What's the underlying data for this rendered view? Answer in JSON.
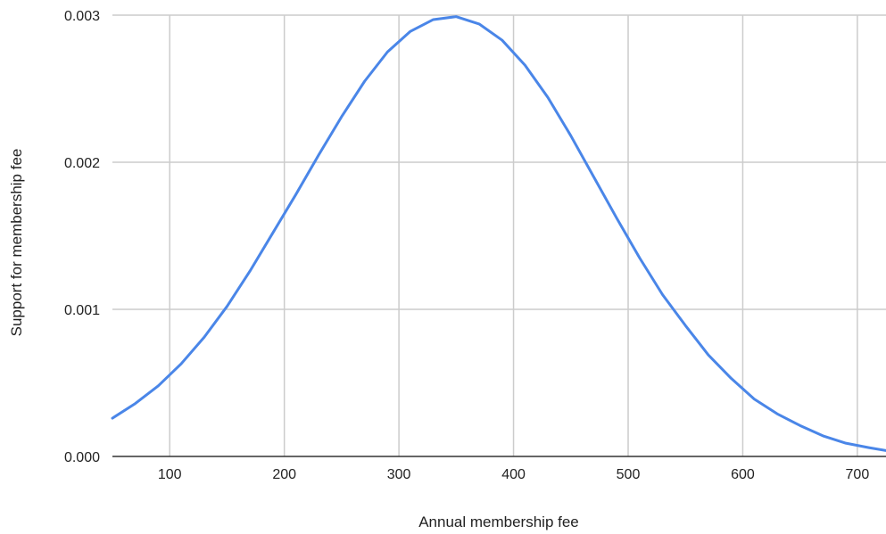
{
  "chart_data": {
    "type": "line",
    "title": "",
    "xlabel": "Annual membership fee",
    "ylabel": "Support for membership fee",
    "xlim": [
      50,
      725
    ],
    "ylim": [
      0,
      0.003
    ],
    "x_ticks": [
      100,
      200,
      300,
      400,
      500,
      600,
      700
    ],
    "x_tick_labels": [
      "100",
      "200",
      "300",
      "400",
      "500",
      "600",
      "700"
    ],
    "y_ticks": [
      0,
      0.001,
      0.002,
      0.003
    ],
    "y_tick_labels": [
      "0.000",
      "0.001",
      "0.002",
      "0.003"
    ],
    "grid": true,
    "legend": "none",
    "series": [
      {
        "color": "#4a86e8",
        "x": [
          50,
          70,
          90,
          110,
          130,
          150,
          170,
          190,
          210,
          230,
          250,
          270,
          290,
          310,
          330,
          350,
          370,
          390,
          410,
          430,
          450,
          470,
          490,
          510,
          530,
          550,
          570,
          590,
          610,
          630,
          650,
          670,
          690,
          710,
          725
        ],
        "y": [
          0.00026,
          0.00036,
          0.00048,
          0.00063,
          0.00081,
          0.00102,
          0.00126,
          0.00152,
          0.00178,
          0.00205,
          0.00231,
          0.00255,
          0.00275,
          0.00289,
          0.00297,
          0.00299,
          0.00294,
          0.00283,
          0.00266,
          0.00244,
          0.00218,
          0.0019,
          0.00162,
          0.00135,
          0.0011,
          0.00089,
          0.00069,
          0.00053,
          0.00039,
          0.00029,
          0.00021,
          0.00014,
          9e-05,
          6e-05,
          4e-05
        ]
      }
    ]
  }
}
